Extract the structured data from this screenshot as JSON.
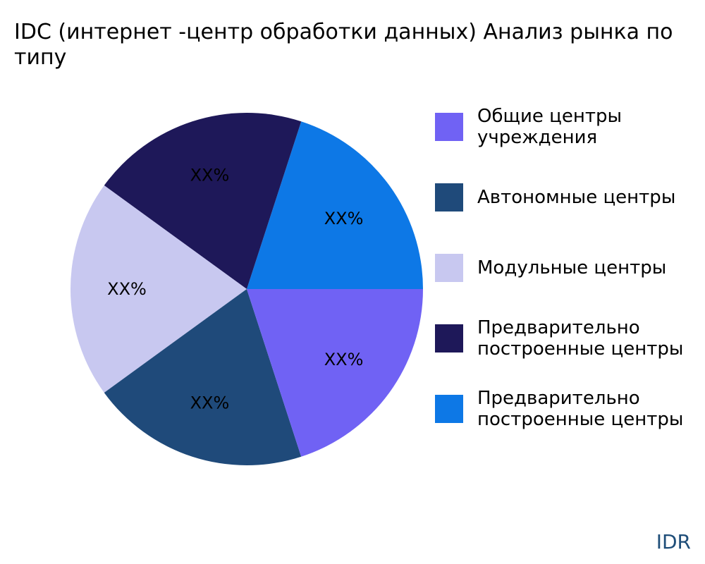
{
  "title_lines": [
    "IDC (интернет -центр обработки данных) Анализ рынка по",
    "типу"
  ],
  "watermark": "IDR",
  "chart_data": {
    "type": "pie",
    "title": "IDC (интернет -центр обработки данных) Анализ рынка по типу",
    "start_angle_deg": 0,
    "direction": "counterclockwise",
    "legend_position": "right",
    "slices": [
      {
        "label": "Предварительно построенные центры",
        "legend_lines": [
          "Предварительно",
          "построенные центры"
        ],
        "value": 20,
        "display": "XX%",
        "color": "#0d78e6"
      },
      {
        "label": "Предварительно построенные центры",
        "legend_lines": [
          "Предварительно",
          "построенные центры"
        ],
        "value": 20,
        "display": "XX%",
        "color": "#1e1859"
      },
      {
        "label": "Модульные центры",
        "legend_lines": [
          "Модульные центры"
        ],
        "value": 20,
        "display": "XX%",
        "color": "#c8c8f0"
      },
      {
        "label": "Автономные центры",
        "legend_lines": [
          "Автономные центры"
        ],
        "value": 20,
        "display": "XX%",
        "color": "#1f4a7a"
      },
      {
        "label": "Общие центры учреждения",
        "legend_lines": [
          "Общие центры",
          "учреждения"
        ],
        "value": 20,
        "display": "XX%",
        "color": "#7062f4"
      }
    ],
    "legend_order": [
      4,
      3,
      2,
      1,
      0
    ]
  }
}
